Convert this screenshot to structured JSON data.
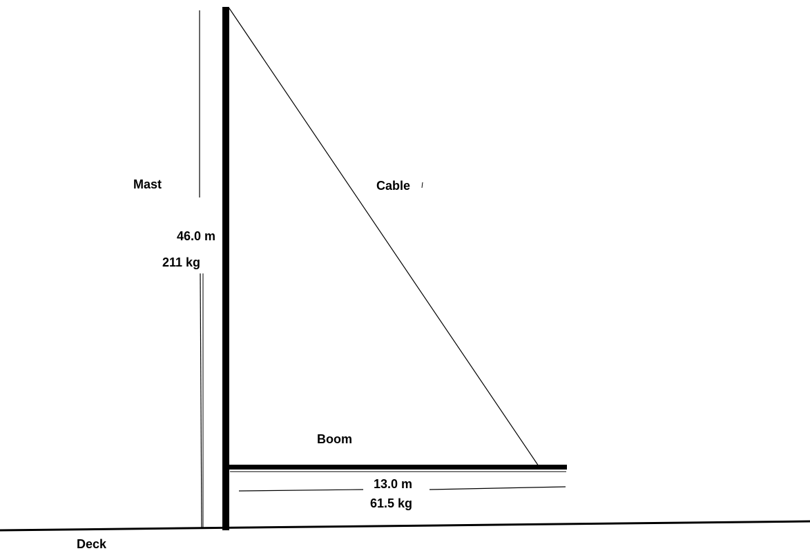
{
  "labels": {
    "mast": "Mast",
    "cable": "Cable",
    "boom": "Boom",
    "deck": "Deck"
  },
  "mast": {
    "length": "46.0 m",
    "mass": "211 kg"
  },
  "boom": {
    "length": "13.0 m",
    "mass": "61.5 kg"
  }
}
